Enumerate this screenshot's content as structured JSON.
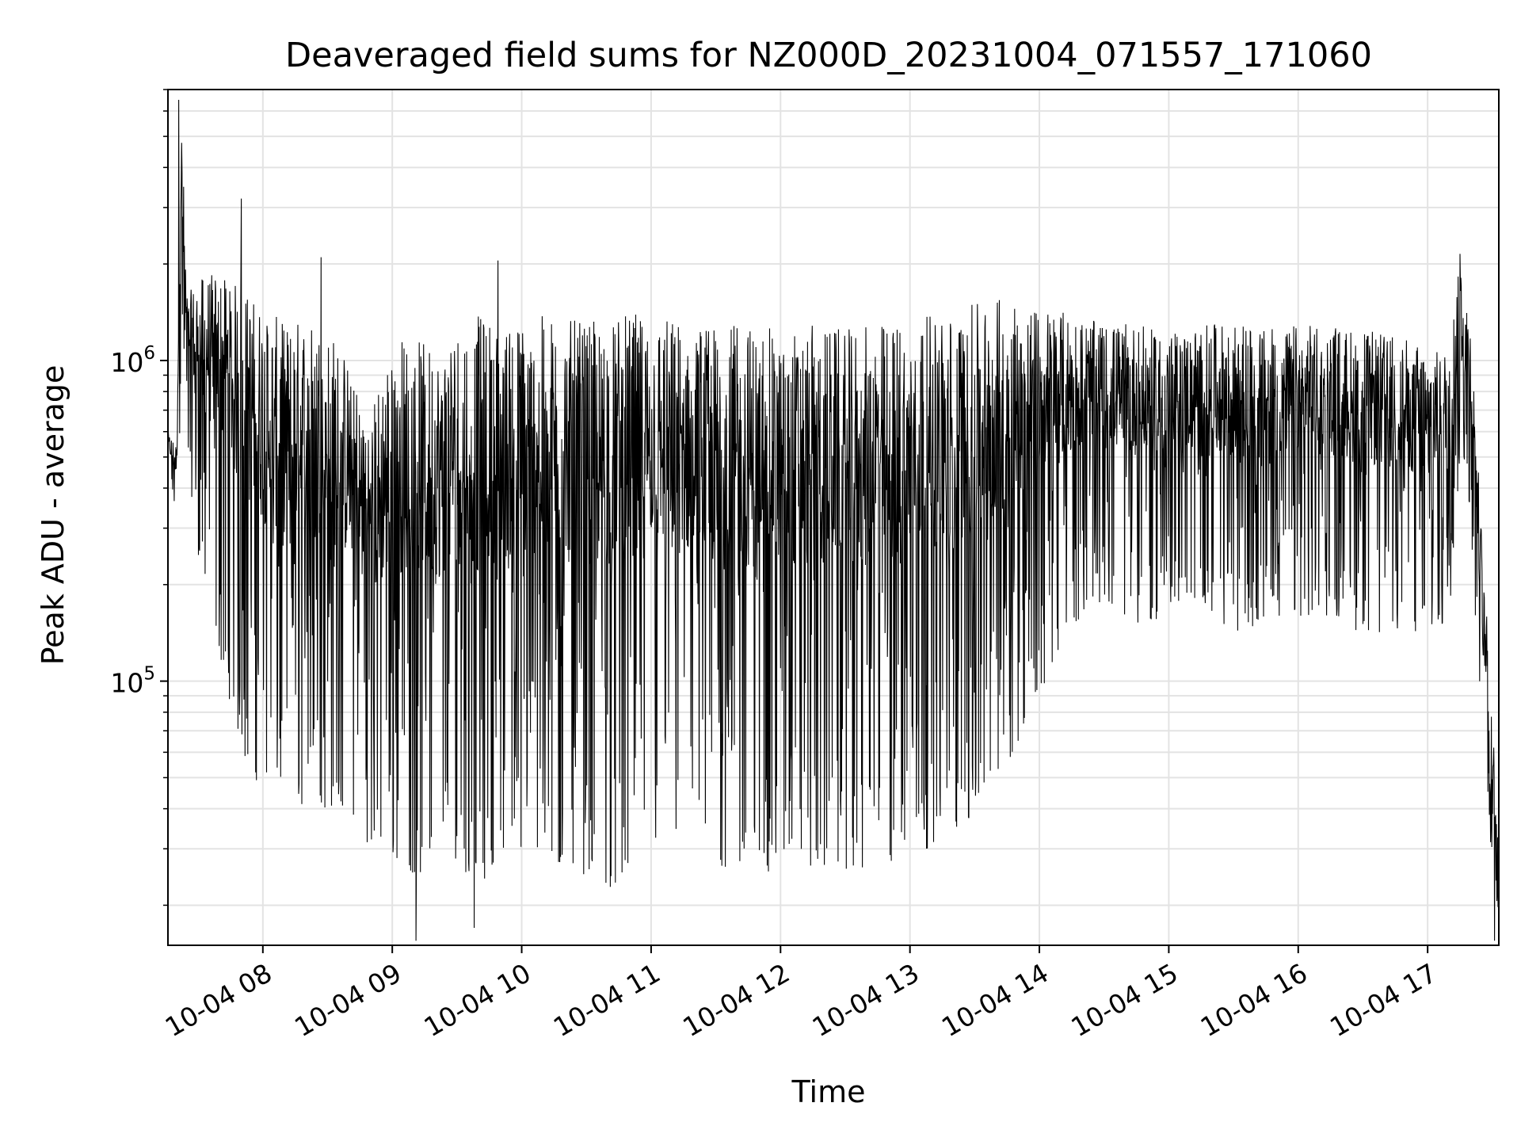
{
  "chart_data": {
    "type": "line",
    "title": "Deaveraged field sums for NZ000D_20231004_071557_171060",
    "xlabel": "Time",
    "ylabel": "Peak ADU - average",
    "y_scale": "log",
    "ylim": [
      15000,
      7000000
    ],
    "xlim": [
      "2023-10-04 07:16",
      "2023-10-04 17:33"
    ],
    "grid": true,
    "x_ticks": [
      {
        "value": "2023-10-04 08:00",
        "label": "10-04 08"
      },
      {
        "value": "2023-10-04 09:00",
        "label": "10-04 09"
      },
      {
        "value": "2023-10-04 10:00",
        "label": "10-04 10"
      },
      {
        "value": "2023-10-04 11:00",
        "label": "10-04 11"
      },
      {
        "value": "2023-10-04 12:00",
        "label": "10-04 12"
      },
      {
        "value": "2023-10-04 13:00",
        "label": "10-04 13"
      },
      {
        "value": "2023-10-04 14:00",
        "label": "10-04 14"
      },
      {
        "value": "2023-10-04 15:00",
        "label": "10-04 15"
      },
      {
        "value": "2023-10-04 16:00",
        "label": "10-04 16"
      },
      {
        "value": "2023-10-04 17:00",
        "label": "10-04 17"
      }
    ],
    "y_ticks": [
      {
        "value": 100000,
        "base": "10",
        "exp": "5"
      },
      {
        "value": 1000000,
        "base": "10",
        "exp": "6"
      }
    ],
    "series": [
      {
        "color": "#000000",
        "x": [
          "2023-10-04 07:16",
          "2023-10-04 07:20",
          "2023-10-04 07:22",
          "2023-10-04 07:25",
          "2023-10-04 07:30",
          "2023-10-04 07:40",
          "2023-10-04 07:50",
          "2023-10-04 08:00",
          "2023-10-04 08:10",
          "2023-10-04 08:20",
          "2023-10-04 08:30",
          "2023-10-04 08:40",
          "2023-10-04 08:50",
          "2023-10-04 09:00",
          "2023-10-04 09:10",
          "2023-10-04 09:20",
          "2023-10-04 09:30",
          "2023-10-04 09:40",
          "2023-10-04 09:50",
          "2023-10-04 10:00",
          "2023-10-04 10:15",
          "2023-10-04 10:30",
          "2023-10-04 10:45",
          "2023-10-04 11:00",
          "2023-10-04 11:15",
          "2023-10-04 11:30",
          "2023-10-04 11:45",
          "2023-10-04 12:00",
          "2023-10-04 12:15",
          "2023-10-04 12:30",
          "2023-10-04 12:45",
          "2023-10-04 13:00",
          "2023-10-04 13:15",
          "2023-10-04 13:30",
          "2023-10-04 13:45",
          "2023-10-04 14:00",
          "2023-10-04 14:15",
          "2023-10-04 14:30",
          "2023-10-04 14:45",
          "2023-10-04 15:00",
          "2023-10-04 15:15",
          "2023-10-04 15:30",
          "2023-10-04 15:45",
          "2023-10-04 16:00",
          "2023-10-04 16:15",
          "2023-10-04 16:30",
          "2023-10-04 16:45",
          "2023-10-04 17:00",
          "2023-10-04 17:10",
          "2023-10-04 17:15",
          "2023-10-04 17:20",
          "2023-10-04 17:25",
          "2023-10-04 17:30",
          "2023-10-04 17:33"
        ],
        "y_min": [
          450000,
          300000,
          700000,
          500000,
          250000,
          120000,
          60000,
          45000,
          45000,
          40000,
          40000,
          40000,
          30000,
          28000,
          25000,
          25000,
          28000,
          22000,
          30000,
          28000,
          25000,
          25000,
          22000,
          30000,
          30000,
          25000,
          26000,
          25000,
          26000,
          26000,
          25000,
          28000,
          32000,
          38000,
          55000,
          90000,
          150000,
          180000,
          150000,
          160000,
          180000,
          140000,
          150000,
          160000,
          160000,
          140000,
          140000,
          140000,
          150000,
          500000,
          300000,
          60000,
          25000,
          18000
        ],
        "y_max": [
          600000,
          550000,
          6500000,
          1600000,
          1800000,
          1900000,
          1700000,
          1500000,
          1300000,
          1400000,
          1300000,
          1000000,
          700000,
          1200000,
          1200000,
          1100000,
          1300000,
          1400000,
          1300000,
          1350000,
          1400000,
          1300000,
          1400000,
          1400000,
          1350000,
          1300000,
          1300000,
          1250000,
          1300000,
          1250000,
          1300000,
          1400000,
          1400000,
          1500000,
          1600000,
          1500000,
          1400000,
          1300000,
          1300000,
          1200000,
          1300000,
          1300000,
          1250000,
          1300000,
          1300000,
          1250000,
          1200000,
          1100000,
          1100000,
          2100000,
          1300000,
          300000,
          80000,
          30000
        ],
        "spikes": [
          {
            "x": "2023-10-04 07:21",
            "y": 6500000
          },
          {
            "x": "2023-10-04 07:50",
            "y": 3200000
          },
          {
            "x": "2023-10-04 08:27",
            "y": 2100000
          },
          {
            "x": "2023-10-04 09:49",
            "y": 2050000
          },
          {
            "x": "2023-10-04 09:11",
            "y": 15500
          },
          {
            "x": "2023-10-04 09:38",
            "y": 17000
          },
          {
            "x": "2023-10-04 17:15",
            "y": 2150000
          },
          {
            "x": "2023-10-04 17:31",
            "y": 15500
          }
        ]
      }
    ]
  }
}
